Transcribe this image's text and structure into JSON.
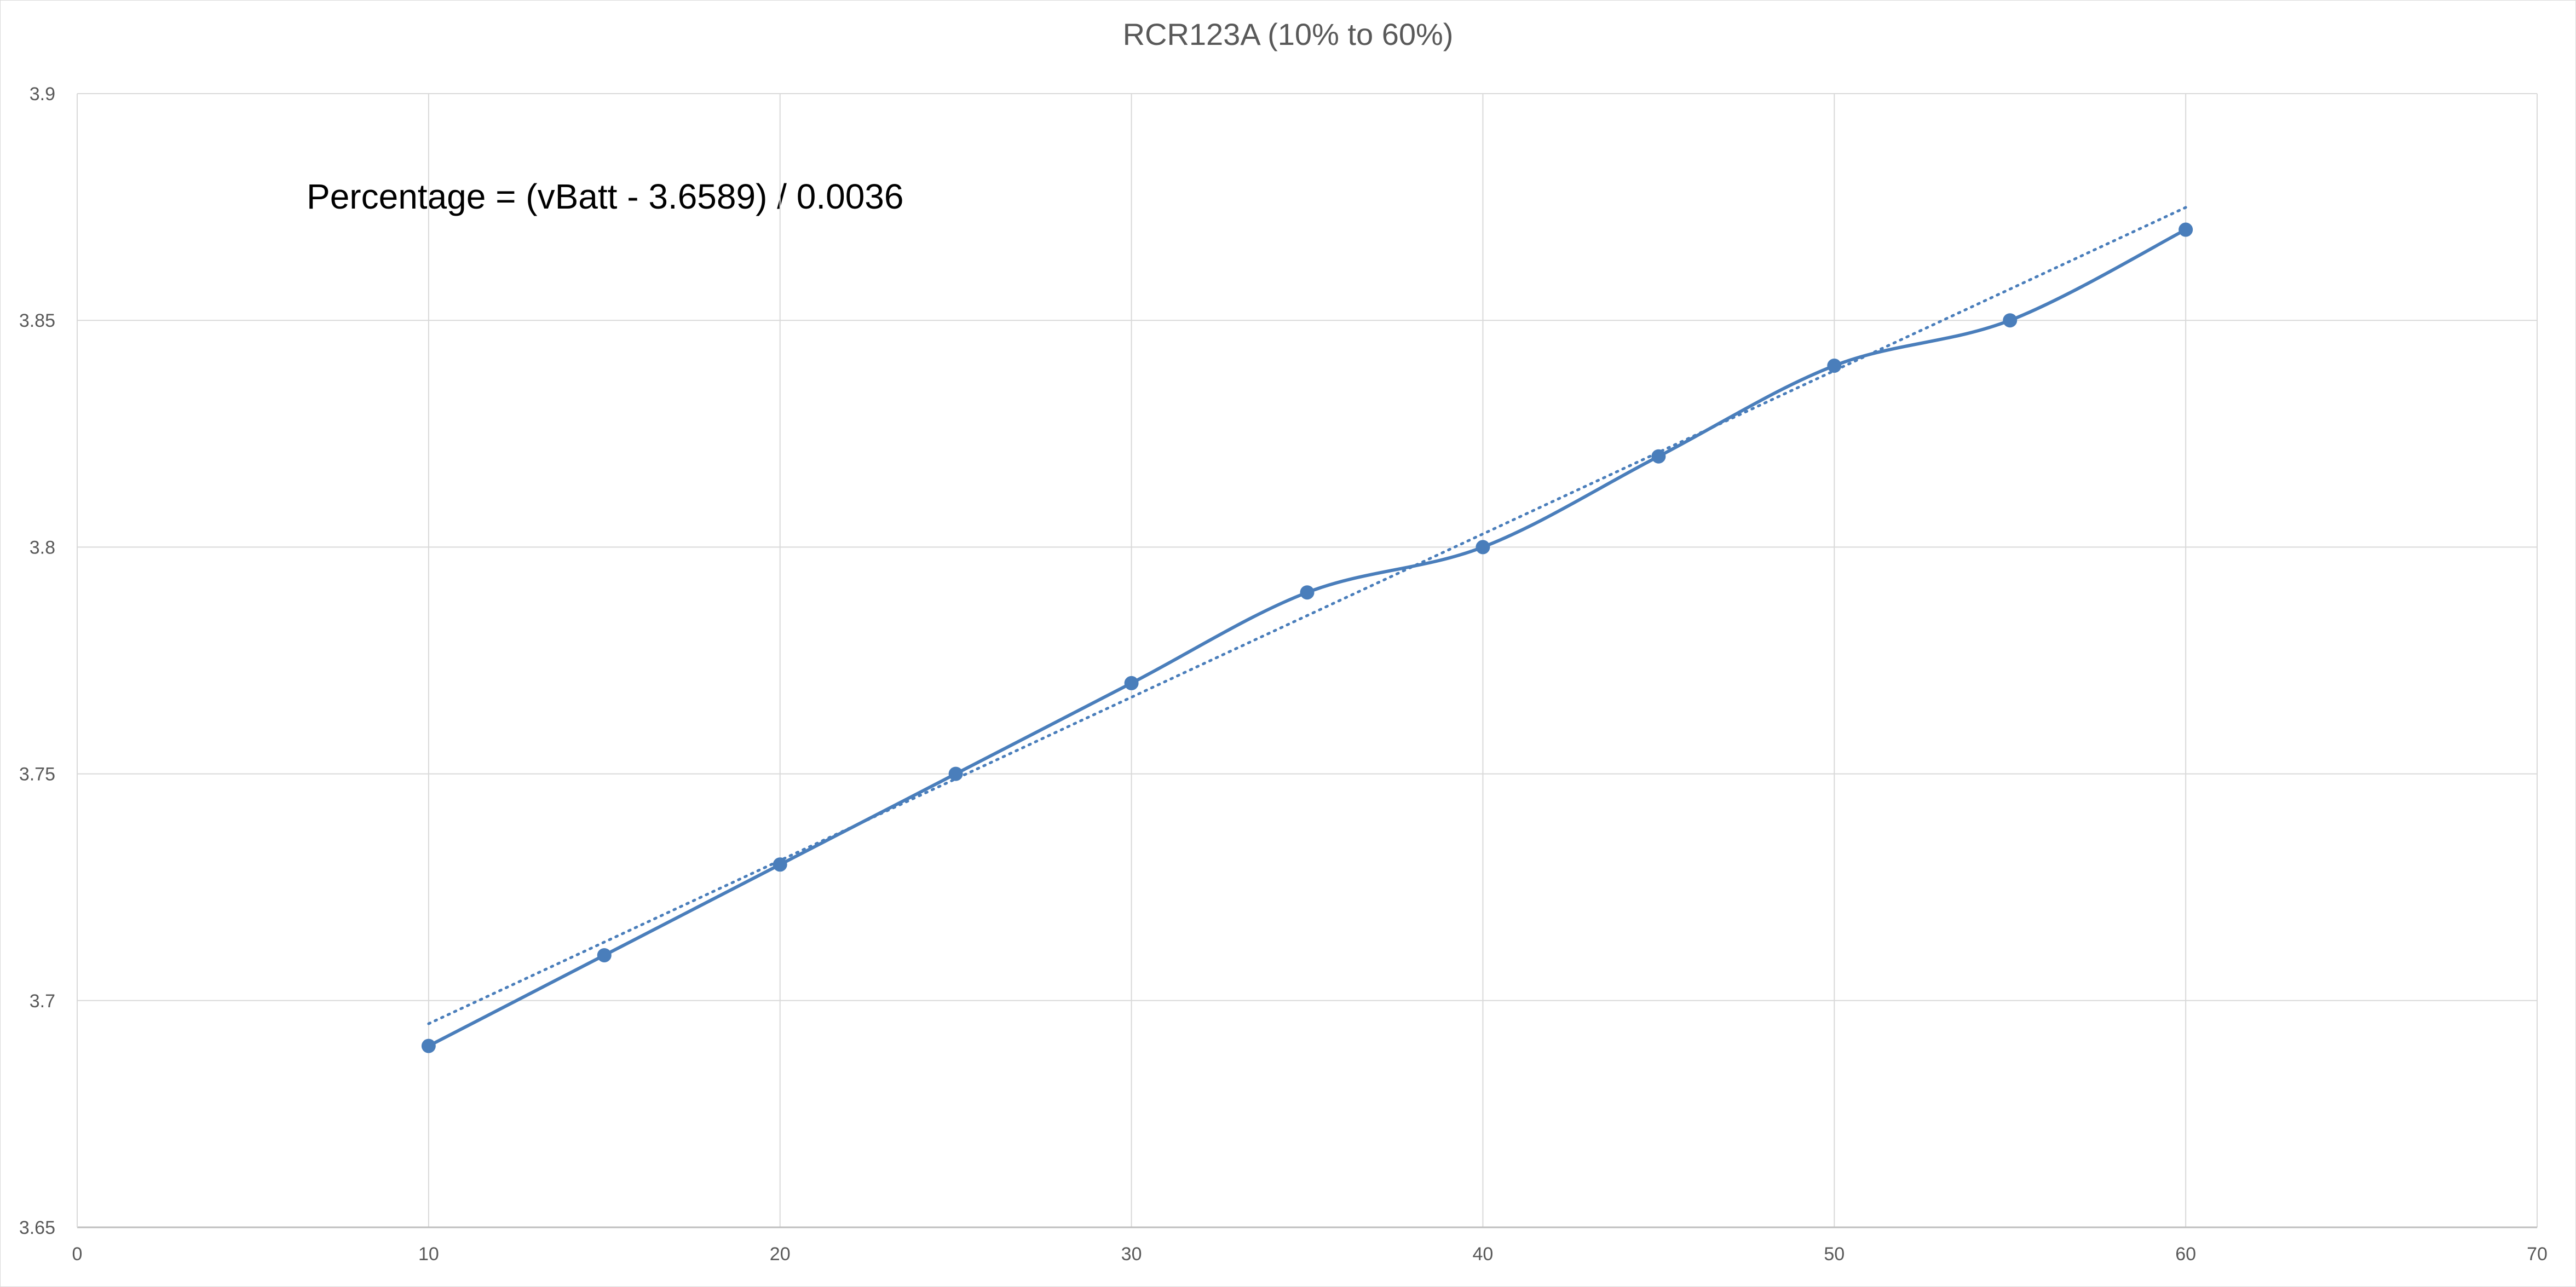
{
  "chart_data": {
    "type": "scatter",
    "title": "RCR123A (10% to 60%)",
    "xlabel": "",
    "ylabel": "",
    "xlim": [
      0,
      70
    ],
    "ylim": [
      3.65,
      3.9
    ],
    "x_ticks": [
      0,
      10,
      20,
      30,
      40,
      50,
      60,
      70
    ],
    "y_ticks": [
      3.65,
      3.7,
      3.75,
      3.8,
      3.85,
      3.9
    ],
    "grid": true,
    "legend": "none",
    "annotations": [
      {
        "text": "Percentage = (vBatt - 3.6589) / 0.0036"
      }
    ],
    "series": [
      {
        "style": "smooth-line-with-markers",
        "color": "#4a7ebb",
        "x": [
          10,
          15,
          20,
          25,
          30,
          35,
          40,
          45,
          50,
          55,
          60
        ],
        "y": [
          3.69,
          3.71,
          3.73,
          3.75,
          3.77,
          3.79,
          3.8,
          3.82,
          3.84,
          3.85,
          3.87
        ]
      }
    ],
    "trendline": {
      "type": "linear",
      "style": "dotted",
      "color": "#4a7ebb",
      "slope": 0.0036,
      "intercept": 3.6589,
      "x_range": [
        10,
        60
      ]
    }
  }
}
